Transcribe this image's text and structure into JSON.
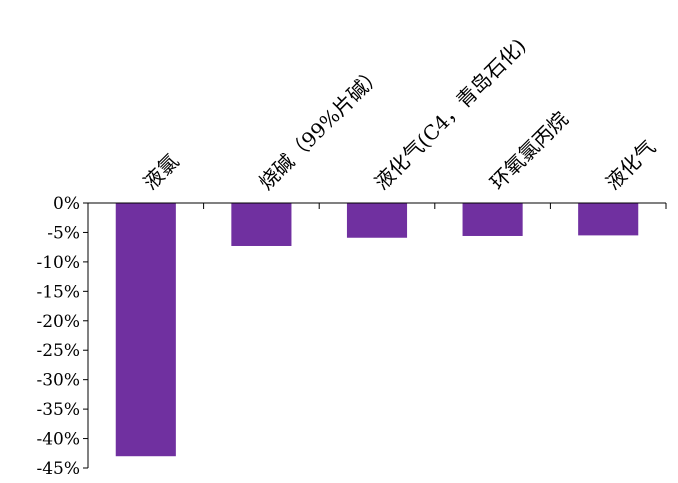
{
  "chart_data": {
    "type": "bar",
    "categories": [
      "液氯",
      "烧碱（99%片碱）",
      "液化气(C4，青岛石化)",
      "环氧氯丙烷",
      "液化气"
    ],
    "values": [
      -43,
      -7.3,
      -5.9,
      -5.6,
      -5.5
    ],
    "ylim": [
      -45,
      0
    ],
    "yticks": [
      0,
      -5,
      -10,
      -15,
      -20,
      -25,
      -30,
      -35,
      -40,
      -45
    ],
    "ytick_labels": [
      "0%",
      "-5%",
      "-10%",
      "-15%",
      "-20%",
      "-25%",
      "-30%",
      "-35%",
      "-40%",
      "-45%"
    ],
    "bar_color": "#7030A0",
    "grid": false,
    "legend": "none",
    "category_label_position": "top-rotated"
  }
}
